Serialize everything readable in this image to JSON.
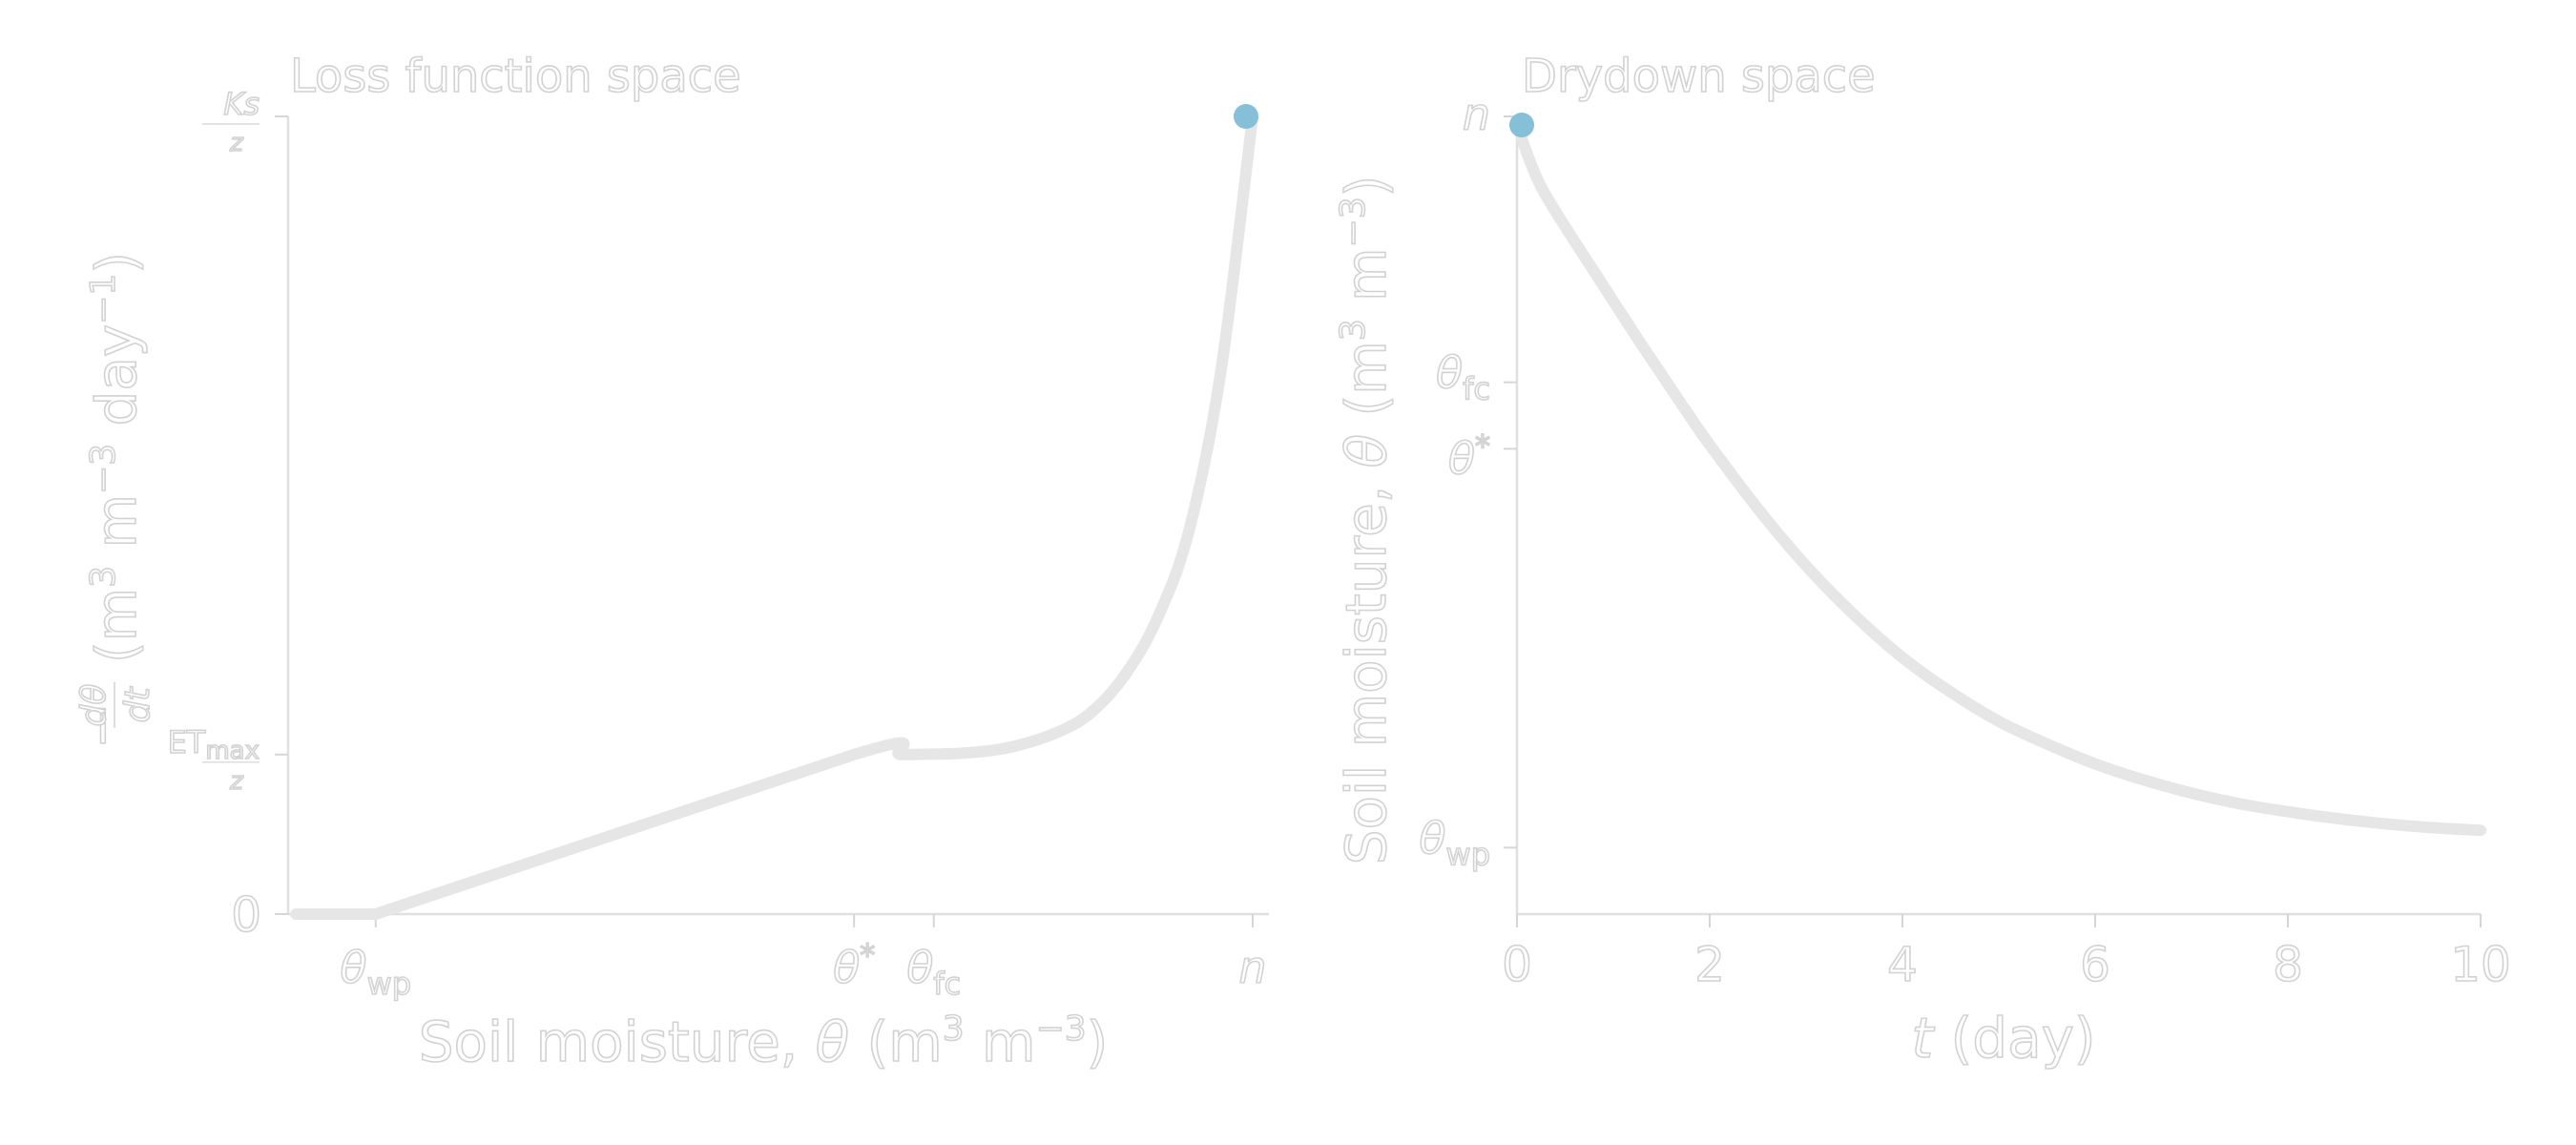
{
  "colors": {
    "curve": "#e6e6e6",
    "marker": "#86bfd8",
    "axis": "#e0e0e0",
    "text_outline": "#d2d2d2",
    "background": "#ffffff"
  },
  "chart_data": [
    {
      "type": "line",
      "title": "Loss function space",
      "xlabel_plain": "Soil moisture, ",
      "xlabel_symbol": "θ",
      "xlabel_units_pre": " (m",
      "xlabel_units_sup1": "3",
      "xlabel_units_mid": " m",
      "xlabel_units_sup2": "−3",
      "xlabel_units_post": ")",
      "ylabel_prefix": "−",
      "ylabel_frac_num": "dθ",
      "ylabel_frac_den": "dt",
      "ylabel_units_pre": "(m",
      "ylabel_units_sup1": "3",
      "ylabel_units_mid": " m",
      "ylabel_units_sup2": "−3",
      "ylabel_units_mid2": " day",
      "ylabel_units_sup3": "−1",
      "ylabel_units_post": ")",
      "xticks": [
        {
          "label": "θ",
          "sub": "wp",
          "x": 0.05
        },
        {
          "label": "θ",
          "sup": "*",
          "x": 0.35
        },
        {
          "label": "θ",
          "sub": "fc",
          "x": 0.4
        },
        {
          "label": "n",
          "x": 0.6
        }
      ],
      "yticks": [
        {
          "label": "0",
          "y": 0
        },
        {
          "label": "ET",
          "sub": "max",
          "den": "z",
          "y": 0.2
        },
        {
          "label": "Ks",
          "den": "z",
          "y": 1.0
        }
      ],
      "xlim": [
        0,
        0.6
      ],
      "ylim": [
        0,
        1.0
      ],
      "series": [
        {
          "x": [
            0,
            0.05,
            0.35,
            0.38,
            0.42,
            0.45,
            0.48,
            0.5,
            0.52,
            0.54,
            0.56,
            0.58,
            0.6
          ],
          "y": [
            0,
            0,
            0.2,
            0.2,
            0.202,
            0.21,
            0.23,
            0.255,
            0.3,
            0.37,
            0.48,
            0.68,
            1.0
          ]
        }
      ],
      "marker": {
        "x": 0.6,
        "y": 1.0
      }
    },
    {
      "type": "line",
      "title": "Drydown space",
      "xlabel_symbol": "t",
      "xlabel_plain": " (day)",
      "ylabel_plain": "Soil moisture, ",
      "ylabel_symbol": "θ",
      "ylabel_units_pre": " (m",
      "ylabel_units_sup1": "3",
      "ylabel_units_mid": " m",
      "ylabel_units_sup2": "−3",
      "ylabel_units_post": ")",
      "xticks": [
        {
          "label": "0",
          "x": 0
        },
        {
          "label": "2",
          "x": 2
        },
        {
          "label": "4",
          "x": 4
        },
        {
          "label": "6",
          "x": 6
        },
        {
          "label": "8",
          "x": 8
        },
        {
          "label": "10",
          "x": 10
        }
      ],
      "yticks": [
        {
          "label": "θ",
          "sub": "wp",
          "y": 0.05
        },
        {
          "label": "θ",
          "sup": "*",
          "y": 0.35
        },
        {
          "label": "θ",
          "sub": "fc",
          "y": 0.4
        },
        {
          "label": "n",
          "y": 0.6
        }
      ],
      "xlim": [
        0,
        10
      ],
      "ylim": [
        0,
        0.6
      ],
      "series": [
        {
          "x": [
            0,
            0.1,
            0.25,
            0.5,
            0.75,
            1.0,
            1.25,
            1.5,
            1.75,
            2.0,
            2.5,
            3.0,
            3.5,
            4.0,
            4.5,
            5.0,
            5.5,
            6.0,
            6.5,
            7.0,
            7.5,
            8.0,
            8.5,
            9.0,
            9.5,
            10.0
          ],
          "y": [
            0.595,
            0.573,
            0.547,
            0.517,
            0.489,
            0.461,
            0.433,
            0.406,
            0.379,
            0.353,
            0.305,
            0.262,
            0.225,
            0.193,
            0.167,
            0.145,
            0.128,
            0.113,
            0.101,
            0.091,
            0.083,
            0.077,
            0.072,
            0.068,
            0.065,
            0.063
          ]
        }
      ],
      "marker": {
        "x": 0,
        "y": 0.6
      }
    }
  ]
}
